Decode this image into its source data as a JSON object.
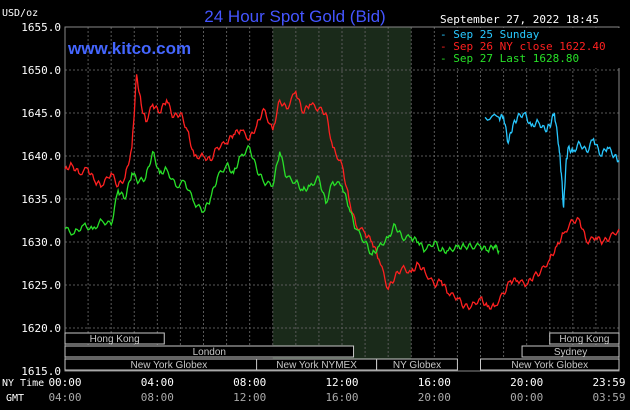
{
  "chart_data": {
    "type": "line",
    "title": "24 Hour Spot Gold (Bid)",
    "watermark": "www.kitco.com",
    "unit_label": "USD/oz",
    "timestamp": "September 27, 2022 18:45",
    "ylim": [
      1615,
      1655
    ],
    "yticks": [
      "1655.0",
      "1650.0",
      "1645.0",
      "1640.0",
      "1635.0",
      "1630.0",
      "1625.0",
      "1620.0",
      "1615.0"
    ],
    "xlim": [
      0,
      24
    ],
    "xticks_ny": [
      "00:00",
      "04:00",
      "08:00",
      "12:00",
      "16:00",
      "20:00",
      "23:59"
    ],
    "xticks_gmt": [
      "04:00",
      "08:00",
      "12:00",
      "16:00",
      "20:00",
      "00:00",
      "03:59"
    ],
    "xaxis_label_ny": "NY Time",
    "xaxis_label_gmt": "GMT",
    "highlight_range": [
      9,
      15
    ],
    "grid": true,
    "legend_position": "top-right",
    "colors": {
      "background": "#000000",
      "grid": "#595959",
      "axis_text": "#ffffff",
      "title": "#4455ff",
      "watermark": "#4466ff",
      "highlight": "#1a2a1a",
      "session_bar": "#c8c8c8",
      "session_text": "#000000"
    },
    "series": [
      {
        "name": "Sep 25 Sunday",
        "legend_label": "- Sep 25 Sunday",
        "color": "#28c8ff",
        "x": [
          18.2,
          18.8,
          19.0,
          19.2,
          19.4,
          19.6,
          19.9,
          20.2,
          20.5,
          20.8,
          21.0,
          21.2,
          21.4,
          21.5,
          21.6,
          21.7,
          21.8,
          22.0,
          22.3,
          22.6,
          22.9,
          23.2,
          23.5,
          23.8,
          24.0
        ],
        "y": [
          1644.5,
          1644.5,
          1644.5,
          1641.5,
          1643.5,
          1644.5,
          1645.0,
          1643.5,
          1644.0,
          1643.0,
          1643.5,
          1645.0,
          1641.0,
          1638.0,
          1634.0,
          1639.0,
          1641.0,
          1640.5,
          1641.5,
          1640.5,
          1642.0,
          1640.0,
          1641.0,
          1640.0,
          1639.5
        ]
      },
      {
        "name": "Sep 26 NY close 1622.40",
        "legend_label": "- Sep 26 NY close 1622.40",
        "color": "#ff2020",
        "x": [
          0.0,
          0.3,
          0.6,
          1.0,
          1.3,
          1.6,
          2.0,
          2.3,
          2.6,
          2.9,
          3.1,
          3.3,
          3.5,
          3.8,
          4.1,
          4.4,
          4.7,
          5.0,
          5.3,
          5.6,
          6.0,
          6.3,
          6.6,
          7.0,
          7.3,
          7.6,
          8.0,
          8.3,
          8.6,
          9.0,
          9.3,
          9.6,
          10.0,
          10.3,
          10.6,
          11.0,
          11.3,
          11.6,
          12.0,
          12.3,
          12.6,
          13.0,
          13.3,
          13.6,
          14.0,
          14.3,
          14.6,
          15.0,
          15.3,
          15.6,
          16.0,
          16.3,
          16.6,
          17.0,
          17.3,
          17.6,
          18.0,
          18.3,
          18.6,
          19.0,
          19.3,
          19.6,
          20.0,
          20.3,
          20.6,
          21.0,
          21.3,
          21.6,
          22.0,
          22.3,
          22.6,
          23.0,
          23.3,
          23.6,
          24.0
        ],
        "y": [
          1638.5,
          1639.0,
          1638.0,
          1638.5,
          1637.0,
          1636.5,
          1638.0,
          1636.5,
          1637.5,
          1641.0,
          1649.5,
          1646.0,
          1644.0,
          1646.0,
          1645.0,
          1646.5,
          1644.5,
          1645.0,
          1643.0,
          1640.0,
          1640.0,
          1639.5,
          1641.0,
          1641.5,
          1642.5,
          1643.0,
          1642.0,
          1643.5,
          1645.5,
          1643.0,
          1646.5,
          1645.5,
          1647.5,
          1645.0,
          1646.0,
          1645.5,
          1645.0,
          1641.0,
          1639.0,
          1635.0,
          1632.0,
          1631.0,
          1630.0,
          1628.0,
          1624.5,
          1626.0,
          1627.0,
          1626.5,
          1627.5,
          1626.5,
          1625.0,
          1625.5,
          1624.0,
          1623.5,
          1622.5,
          1622.5,
          1623.5,
          1622.5,
          1622.5,
          1624.0,
          1625.5,
          1625.5,
          1625.0,
          1626.0,
          1626.5,
          1628.0,
          1629.5,
          1631.0,
          1632.5,
          1632.5,
          1630.0,
          1630.5,
          1630.0,
          1630.5,
          1631.5
        ]
      },
      {
        "name": "Sep 27 Last 1628.80",
        "legend_label": "- Sep 27 Last 1628.80",
        "color": "#28e028",
        "x": [
          0.0,
          0.4,
          0.8,
          1.2,
          1.6,
          2.0,
          2.3,
          2.6,
          2.9,
          3.2,
          3.5,
          3.8,
          4.1,
          4.4,
          4.8,
          5.2,
          5.6,
          6.0,
          6.3,
          6.6,
          7.0,
          7.3,
          7.6,
          8.0,
          8.3,
          8.6,
          9.0,
          9.3,
          9.6,
          10.0,
          10.3,
          10.6,
          11.0,
          11.3,
          11.6,
          12.0,
          12.3,
          12.6,
          13.0,
          13.3,
          13.6,
          14.0,
          14.3,
          14.6,
          15.0,
          15.3,
          15.6,
          16.0,
          16.3,
          16.6,
          17.0,
          17.3,
          17.6,
          18.0,
          18.3,
          18.6,
          18.8
        ],
        "y": [
          1631.5,
          1631.0,
          1632.0,
          1631.5,
          1632.5,
          1632.0,
          1636.0,
          1635.0,
          1638.0,
          1637.0,
          1637.5,
          1640.5,
          1638.0,
          1638.5,
          1636.5,
          1637.0,
          1634.5,
          1633.5,
          1635.0,
          1637.5,
          1639.0,
          1638.0,
          1640.0,
          1641.0,
          1638.5,
          1637.0,
          1636.5,
          1640.5,
          1637.5,
          1637.0,
          1636.0,
          1636.5,
          1637.5,
          1634.5,
          1637.0,
          1636.5,
          1634.0,
          1631.5,
          1630.0,
          1628.5,
          1629.5,
          1630.5,
          1632.0,
          1630.5,
          1630.5,
          1630.0,
          1629.0,
          1630.0,
          1629.0,
          1629.0,
          1629.5,
          1629.5,
          1629.5,
          1629.5,
          1629.0,
          1629.5,
          1629.0
        ]
      }
    ],
    "sessions": [
      {
        "label": "Hong Kong",
        "start": 0.0,
        "end": 4.3,
        "row": 0
      },
      {
        "label": "London",
        "start": 0.0,
        "end": 12.5,
        "row": 1
      },
      {
        "label": "New York Globex",
        "start": 0.0,
        "end": 9.0,
        "row": 2
      },
      {
        "label": "New York NYMEX",
        "start": 8.3,
        "end": 13.5,
        "row": 2
      },
      {
        "label": "NY Globex",
        "start": 13.5,
        "end": 17.0,
        "row": 2
      },
      {
        "label": "Hong Kong",
        "start": 21.0,
        "end": 24.0,
        "row": 0
      },
      {
        "label": "Sydney",
        "start": 19.8,
        "end": 24.0,
        "row": 1
      },
      {
        "label": "New York Globex",
        "start": 18.0,
        "end": 24.0,
        "row": 2
      }
    ]
  }
}
